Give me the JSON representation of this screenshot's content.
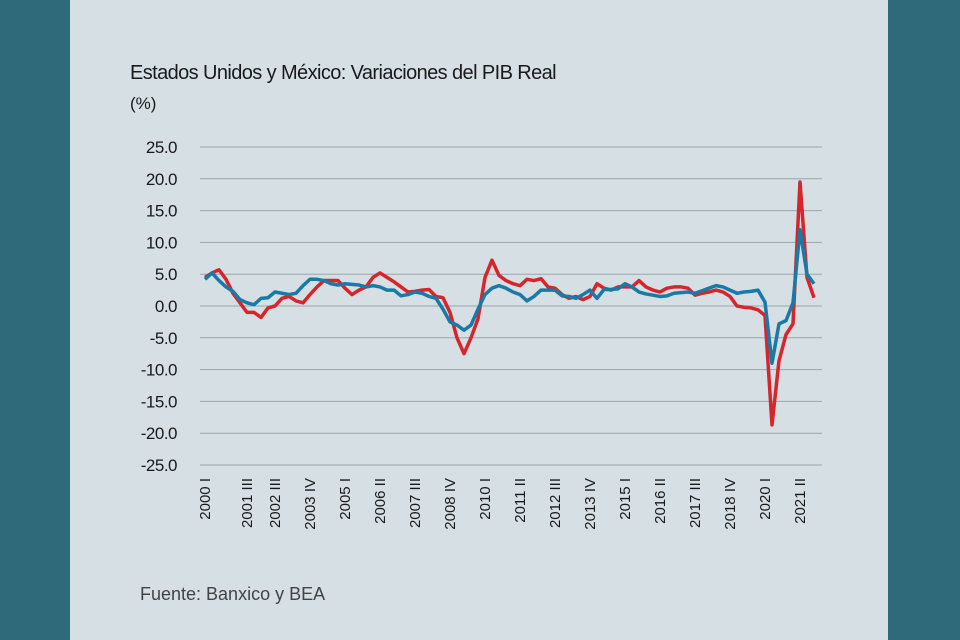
{
  "chart_data": {
    "type": "line",
    "title": "Estados Unidos y México: Variaciones del PIB Real",
    "y_label": "(%)",
    "source": "Fuente: Banxico y BEA",
    "categories": [
      "2000 I",
      null,
      null,
      null,
      null,
      null,
      "2001 III",
      null,
      null,
      null,
      "2002 III",
      null,
      null,
      null,
      null,
      "2003 IV",
      null,
      null,
      null,
      null,
      "2005 I",
      null,
      null,
      null,
      null,
      "2006 II",
      null,
      null,
      null,
      null,
      "2007 III",
      null,
      null,
      null,
      null,
      "2008 IV",
      null,
      null,
      null,
      null,
      "2010 I",
      null,
      null,
      null,
      null,
      "2011 II",
      null,
      null,
      null,
      null,
      "2012 III",
      null,
      null,
      null,
      null,
      "2013 IV",
      null,
      null,
      null,
      null,
      "2015 I",
      null,
      null,
      null,
      null,
      "2016 II",
      null,
      null,
      null,
      null,
      "2017 III",
      null,
      null,
      null,
      null,
      "2018 IV",
      null,
      null,
      null,
      null,
      "2020 I",
      null,
      null,
      null,
      null,
      "2021 II",
      null,
      null
    ],
    "series": [
      {
        "color": "#d6262b",
        "values": [
          4.5,
          5.2,
          5.7,
          4.2,
          2.0,
          0.5,
          -1.0,
          -1.0,
          -1.8,
          -0.3,
          0.0,
          1.2,
          1.5,
          0.8,
          0.5,
          1.8,
          3.0,
          4.0,
          4.0,
          4.0,
          2.8,
          1.8,
          2.5,
          3.0,
          4.5,
          5.2,
          4.5,
          3.8,
          3.0,
          2.2,
          2.3,
          2.5,
          2.6,
          1.5,
          1.3,
          -1.0,
          -5.0,
          -7.5,
          -5.0,
          -2.0,
          4.5,
          7.2,
          4.8,
          4.0,
          3.5,
          3.2,
          4.2,
          4.0,
          4.3,
          3.0,
          2.8,
          1.8,
          1.2,
          1.5,
          1.0,
          1.5,
          3.5,
          2.8,
          2.5,
          3.0,
          3.0,
          3.0,
          4.0,
          3.0,
          2.5,
          2.2,
          2.8,
          3.0,
          3.0,
          2.8,
          1.7,
          2.0,
          2.2,
          2.5,
          2.2,
          1.5,
          0.0,
          -0.2,
          -0.3,
          -0.6,
          -1.5,
          -18.7,
          -8.6,
          -4.5,
          -2.8,
          19.5,
          4.5,
          1.3
        ]
      },
      {
        "color": "#1a7aa6",
        "values": [
          4.2,
          5.2,
          4.0,
          3.0,
          2.3,
          1.0,
          0.5,
          0.2,
          1.2,
          1.3,
          2.2,
          2.0,
          1.8,
          2.0,
          3.2,
          4.2,
          4.2,
          4.0,
          3.5,
          3.3,
          3.5,
          3.4,
          3.3,
          3.0,
          3.2,
          3.0,
          2.5,
          2.5,
          1.6,
          1.8,
          2.2,
          2.0,
          1.5,
          1.2,
          -0.5,
          -2.5,
          -3.0,
          -3.8,
          -3.0,
          -0.5,
          1.8,
          2.8,
          3.2,
          2.8,
          2.2,
          1.8,
          0.8,
          1.5,
          2.5,
          2.5,
          2.5,
          1.6,
          1.5,
          1.2,
          1.8,
          2.5,
          1.2,
          2.6,
          2.6,
          2.7,
          3.5,
          3.0,
          2.2,
          1.9,
          1.7,
          1.5,
          1.6,
          2.0,
          2.1,
          2.2,
          2.0,
          2.4,
          2.8,
          3.2,
          3.0,
          2.5,
          2.0,
          2.2,
          2.3,
          2.5,
          0.6,
          -9.0,
          -2.8,
          -2.3,
          0.5,
          12.0,
          5.0,
          3.5
        ]
      }
    ],
    "ylim": [
      -25,
      25
    ],
    "yticks": [
      {
        "value": 25,
        "label": "25.0"
      },
      {
        "value": 20,
        "label": "20.0"
      },
      {
        "value": 15,
        "label": "15.0"
      },
      {
        "value": 10,
        "label": "10.0"
      },
      {
        "value": 5,
        "label": "5.0"
      },
      {
        "value": 0,
        "label": "0.0"
      },
      {
        "value": -5,
        "label": "-5.0"
      },
      {
        "value": -10,
        "label": "-10.0"
      },
      {
        "value": -15,
        "label": "-15.0"
      },
      {
        "value": -20,
        "label": "-20.0"
      },
      {
        "value": -25,
        "label": "-25.0"
      }
    ],
    "grid": true
  }
}
